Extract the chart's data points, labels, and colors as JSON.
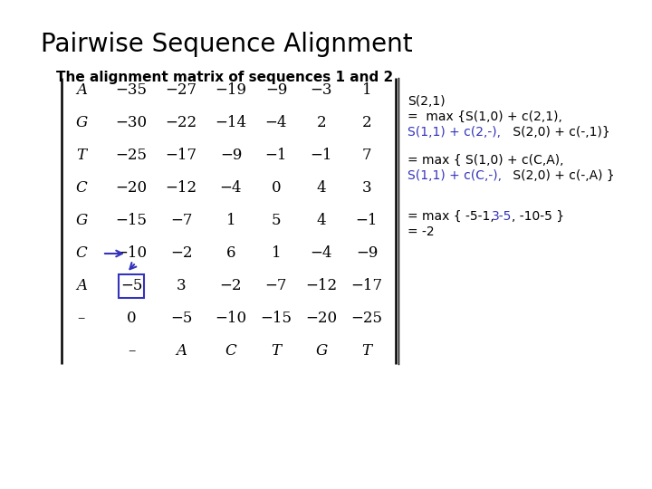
{
  "title": "Pairwise Sequence Alignment",
  "subtitle": "The alignment matrix of sequences 1 and 2",
  "background_color": "#ffffff",
  "matrix_rows": [
    [
      "A",
      "−35",
      "−27",
      "−19",
      "−9",
      "−3",
      "1"
    ],
    [
      "G",
      "−30",
      "−22",
      "−14",
      "−4",
      "2",
      "2"
    ],
    [
      "T",
      "−25",
      "−17",
      "−9",
      "−1",
      "−1",
      "7"
    ],
    [
      "C",
      "−20",
      "−12",
      "−4",
      "0",
      "4",
      "3"
    ],
    [
      "G",
      "−15",
      "−7",
      "1",
      "5",
      "4",
      "−1"
    ],
    [
      "C",
      "−10",
      "−2",
      "6",
      "1",
      "−4",
      "−9"
    ],
    [
      "A",
      "−5",
      "3",
      "−2",
      "−7",
      "−12",
      "−17"
    ],
    [
      "–",
      "0",
      "−5",
      "−10",
      "−15",
      "−20",
      "−25"
    ],
    [
      "",
      "–",
      "A",
      "C",
      "T",
      "G",
      "T"
    ]
  ],
  "title_fontsize": 20,
  "subtitle_fontsize": 11,
  "matrix_fontsize": 12,
  "annot_fontsize": 10,
  "blue_color": "#3333bb",
  "black_color": "#000000",
  "box_color": "#8B6914"
}
